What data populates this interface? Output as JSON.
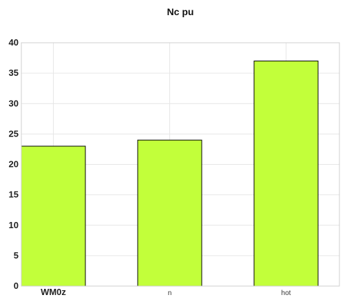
{
  "chart_data": {
    "type": "bar",
    "title": "Nc pu",
    "categories": [
      "WM0z",
      "n",
      "hot"
    ],
    "values": [
      23,
      24,
      37
    ],
    "xlabel": "",
    "ylabel": "",
    "ylim": [
      0,
      40
    ],
    "yticks": [
      0,
      5,
      10,
      15,
      20,
      25,
      30,
      35,
      40
    ],
    "grid": true,
    "legend": "none",
    "bar_color": "#c2ff3a",
    "bar_edge_color": "#000000"
  }
}
